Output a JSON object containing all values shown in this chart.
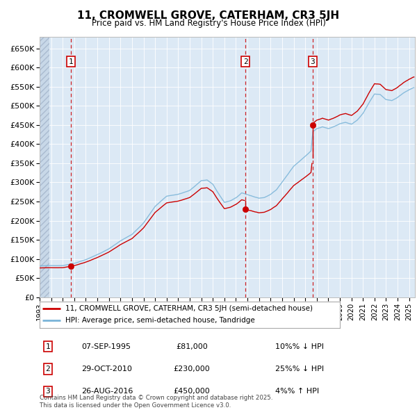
{
  "title": "11, CROMWELL GROVE, CATERHAM, CR3 5JH",
  "subtitle": "Price paid vs. HM Land Registry's House Price Index (HPI)",
  "ylabel_values": [
    "£0",
    "£50K",
    "£100K",
    "£150K",
    "£200K",
    "£250K",
    "£300K",
    "£350K",
    "£400K",
    "£450K",
    "£500K",
    "£550K",
    "£600K",
    "£650K"
  ],
  "ylim": [
    0,
    680000
  ],
  "xlim_start": 1993.0,
  "xlim_end": 2025.5,
  "sale_color": "#cc0000",
  "hpi_color": "#7ab4d8",
  "background_color": "#dce9f5",
  "grid_color": "#ffffff",
  "hatch_color": "#c8d8ea",
  "transactions": [
    {
      "num": 1,
      "date": "07-SEP-1995",
      "price": 81000,
      "year": 1995.69,
      "pct": "10%",
      "dir": "↓"
    },
    {
      "num": 2,
      "date": "29-OCT-2010",
      "price": 230000,
      "year": 2010.83,
      "pct": "25%",
      "dir": "↓"
    },
    {
      "num": 3,
      "date": "26-AUG-2016",
      "price": 450000,
      "year": 2016.65,
      "pct": "4%",
      "dir": "↑"
    }
  ],
  "legend_label_red": "11, CROMWELL GROVE, CATERHAM, CR3 5JH (semi-detached house)",
  "legend_label_blue": "HPI: Average price, semi-detached house, Tandridge",
  "footnote": "Contains HM Land Registry data © Crown copyright and database right 2025.\nThis data is licensed under the Open Government Licence v3.0."
}
